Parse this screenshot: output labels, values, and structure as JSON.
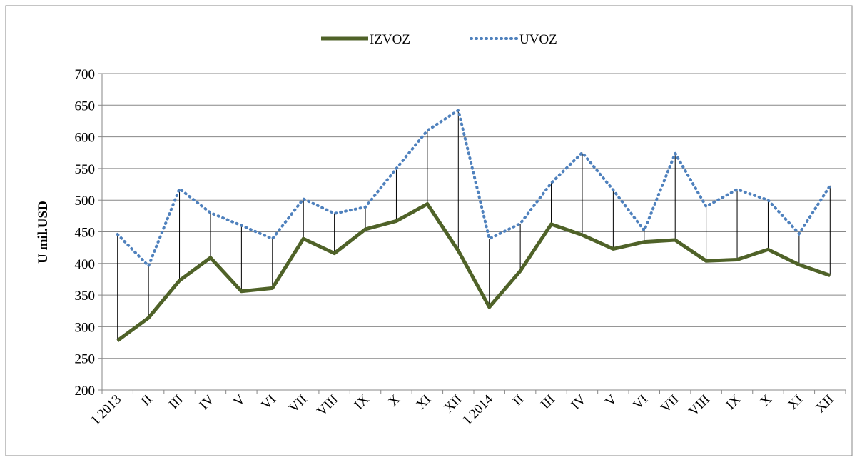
{
  "chart_data": {
    "type": "line",
    "ylabel": "U  mil.USD",
    "categories": [
      "I 2013",
      "II",
      "III",
      "IV",
      "V",
      "VI",
      "VII",
      "VIII",
      "IX",
      "X",
      "XI",
      "XII",
      "I 2014",
      "II",
      "III",
      "IV",
      "V",
      "VI",
      "VII",
      "VIII",
      "IX",
      "X",
      "XI",
      "XII"
    ],
    "series": [
      {
        "name": "IZVOZ",
        "color": "#4f6228",
        "style": "solid",
        "values": [
          278,
          314,
          373,
          409,
          356,
          361,
          439,
          416,
          454,
          467,
          494,
          420,
          331,
          388,
          462,
          445,
          423,
          434,
          437,
          404,
          406,
          422,
          398,
          381
        ]
      },
      {
        "name": "UVOZ",
        "color": "#4f81bd",
        "style": "dotted",
        "values": [
          446,
          396,
          518,
          480,
          460,
          439,
          502,
          479,
          489,
          550,
          610,
          642,
          439,
          463,
          527,
          575,
          516,
          452,
          574,
          490,
          517,
          500,
          447,
          523
        ]
      }
    ],
    "ylim": [
      200,
      700
    ],
    "yticks": [
      200,
      250,
      300,
      350,
      400,
      450,
      500,
      550,
      600,
      650,
      700
    ],
    "grid": true,
    "legend": "top",
    "high_low_lines": true
  }
}
